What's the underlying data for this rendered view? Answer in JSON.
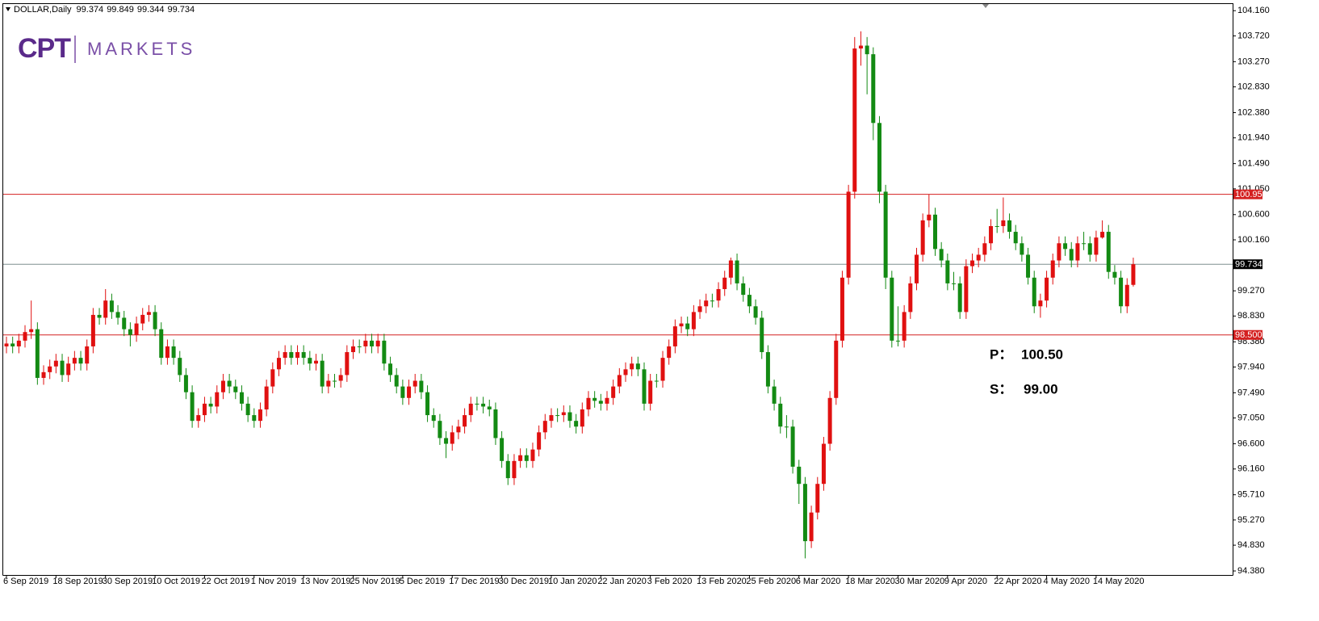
{
  "logo": {
    "mark": "CPT",
    "name": "MARKETS"
  },
  "chart_data": {
    "type": "candlestick",
    "title": "DOLLAR,Daily",
    "up_color": "#e01010",
    "down_color": "#138a13",
    "categories": [
      "6 Sep 2019",
      null,
      null,
      null,
      null,
      null,
      null,
      null,
      "18 Sep 2019",
      null,
      null,
      null,
      null,
      null,
      null,
      null,
      "30 Sep 2019",
      null,
      null,
      null,
      null,
      null,
      null,
      null,
      "10 Oct 2019",
      null,
      null,
      null,
      null,
      null,
      null,
      null,
      "22 Oct 2019",
      null,
      null,
      null,
      null,
      null,
      null,
      null,
      "1 Nov 2019",
      null,
      null,
      null,
      null,
      null,
      null,
      null,
      "13 Nov 2019",
      null,
      null,
      null,
      null,
      null,
      null,
      null,
      "25 Nov 2019",
      null,
      null,
      null,
      null,
      null,
      null,
      null,
      "5 Dec 2019",
      null,
      null,
      null,
      null,
      null,
      null,
      null,
      "17 Dec 2019",
      null,
      null,
      null,
      null,
      null,
      null,
      null,
      "30 Dec 2019",
      null,
      null,
      null,
      null,
      null,
      null,
      null,
      "10 Jan 2020",
      null,
      null,
      null,
      null,
      null,
      null,
      null,
      "22 Jan 2020",
      null,
      null,
      null,
      null,
      null,
      null,
      null,
      "3 Feb 2020",
      null,
      null,
      null,
      null,
      null,
      null,
      null,
      "13 Feb 2020",
      null,
      null,
      null,
      null,
      null,
      null,
      null,
      "25 Feb 2020",
      null,
      null,
      null,
      null,
      null,
      null,
      null,
      "6 Mar 2020",
      null,
      null,
      null,
      null,
      null,
      null,
      null,
      "18 Mar 2020",
      null,
      null,
      null,
      null,
      null,
      null,
      null,
      "30 Mar 2020",
      null,
      null,
      null,
      null,
      null,
      null,
      null,
      "9 Apr 2020",
      null,
      null,
      null,
      null,
      null,
      null,
      null,
      "22 Apr 2020",
      null,
      null,
      null,
      null,
      null,
      null,
      null,
      "4 May 2020",
      null,
      null,
      null,
      null,
      null,
      null,
      null,
      "14 May 2020",
      null,
      null,
      null,
      null,
      null,
      null
    ],
    "open": [
      98.3,
      98.35,
      98.3,
      98.4,
      98.55,
      98.6,
      97.75,
      97.85,
      97.95,
      98.05,
      97.8,
      98.0,
      98.1,
      98.0,
      98.3,
      98.85,
      98.8,
      99.1,
      98.9,
      98.8,
      98.6,
      98.5,
      98.7,
      98.85,
      98.9,
      98.6,
      98.1,
      98.3,
      98.1,
      97.8,
      97.5,
      97.0,
      97.1,
      97.3,
      97.25,
      97.5,
      97.7,
      97.6,
      97.5,
      97.3,
      97.1,
      97.0,
      97.2,
      97.6,
      97.9,
      98.1,
      98.2,
      98.1,
      98.2,
      98.1,
      98.0,
      98.05,
      97.6,
      97.7,
      97.7,
      97.8,
      98.2,
      98.3,
      98.3,
      98.4,
      98.3,
      98.4,
      98.0,
      97.8,
      97.6,
      97.4,
      97.6,
      97.7,
      97.5,
      97.1,
      97.0,
      96.7,
      96.6,
      96.8,
      96.9,
      97.1,
      97.3,
      97.3,
      97.25,
      97.2,
      96.7,
      96.3,
      96.0,
      96.3,
      96.4,
      96.3,
      96.5,
      96.8,
      97.0,
      97.1,
      97.1,
      97.15,
      97.0,
      96.9,
      97.2,
      97.4,
      97.35,
      97.3,
      97.4,
      97.6,
      97.8,
      97.9,
      98.0,
      97.9,
      97.3,
      97.7,
      97.7,
      98.1,
      98.3,
      98.65,
      98.7,
      98.6,
      98.9,
      99.0,
      99.1,
      99.1,
      99.3,
      99.5,
      99.8,
      99.4,
      99.2,
      99.0,
      98.8,
      98.2,
      97.6,
      97.3,
      96.9,
      96.9,
      96.2,
      95.9,
      94.9,
      95.4,
      95.9,
      96.6,
      97.4,
      98.4,
      99.5,
      101.0,
      103.5,
      103.55,
      103.4,
      102.2,
      101.0,
      99.5,
      98.4,
      98.4,
      98.9,
      99.4,
      99.9,
      100.5,
      100.6,
      100.0,
      99.8,
      99.4,
      99.4,
      98.9,
      99.7,
      99.8,
      99.9,
      100.1,
      100.4,
      100.4,
      100.5,
      100.3,
      100.1,
      99.9,
      99.5,
      99.0,
      99.1,
      99.5,
      99.8,
      100.1,
      100.0,
      99.8,
      100.1,
      100.1,
      99.9,
      100.2,
      100.3,
      99.6,
      99.5,
      99.0,
      99.374
    ],
    "high": [
      98.47,
      98.47,
      98.52,
      98.67,
      99.1,
      98.72,
      97.97,
      98.07,
      98.17,
      98.17,
      98.12,
      98.22,
      98.22,
      98.42,
      98.97,
      98.97,
      99.3,
      99.22,
      99.02,
      98.92,
      98.72,
      98.82,
      98.97,
      99.02,
      99.02,
      98.72,
      98.42,
      98.42,
      98.22,
      97.92,
      97.62,
      97.22,
      97.42,
      97.42,
      97.62,
      97.82,
      97.82,
      97.72,
      97.62,
      97.42,
      97.22,
      97.32,
      97.72,
      98.02,
      98.22,
      98.32,
      98.32,
      98.32,
      98.32,
      98.22,
      98.17,
      98.17,
      97.82,
      97.82,
      97.92,
      98.32,
      98.42,
      98.42,
      98.52,
      98.52,
      98.52,
      98.52,
      98.12,
      97.92,
      97.72,
      97.72,
      97.82,
      97.82,
      97.62,
      97.22,
      97.12,
      96.82,
      96.92,
      97.02,
      97.22,
      97.42,
      97.42,
      97.42,
      97.37,
      97.32,
      96.82,
      96.42,
      96.42,
      96.52,
      96.52,
      96.62,
      96.92,
      97.12,
      97.22,
      97.22,
      97.27,
      97.27,
      97.12,
      97.32,
      97.52,
      97.52,
      97.47,
      97.52,
      97.72,
      97.92,
      98.02,
      98.12,
      98.12,
      98.02,
      97.82,
      97.82,
      98.22,
      98.42,
      98.77,
      98.82,
      98.82,
      99.02,
      99.12,
      99.22,
      99.22,
      99.42,
      99.62,
      99.85,
      99.92,
      99.52,
      99.32,
      99.12,
      98.92,
      98.32,
      97.72,
      97.42,
      97.1,
      97.02,
      96.32,
      96.02,
      95.52,
      96.02,
      96.72,
      97.52,
      98.52,
      99.62,
      101.12,
      103.7,
      103.8,
      103.7,
      103.52,
      102.32,
      101.12,
      99.62,
      99.0,
      99.02,
      99.52,
      100.02,
      100.62,
      100.95,
      100.72,
      100.12,
      99.92,
      99.6,
      99.52,
      99.82,
      99.92,
      100.02,
      100.22,
      100.52,
      100.7,
      100.9,
      100.62,
      100.42,
      100.22,
      100.02,
      99.62,
      99.22,
      99.62,
      99.92,
      100.22,
      100.22,
      100.12,
      100.22,
      100.3,
      100.22,
      100.32,
      100.5,
      100.42,
      99.72,
      99.62,
      99.49,
      99.849
    ],
    "low": [
      98.18,
      98.18,
      98.18,
      98.28,
      98.43,
      97.63,
      97.63,
      97.73,
      97.83,
      97.68,
      97.68,
      97.88,
      97.88,
      97.88,
      98.18,
      98.68,
      98.68,
      98.78,
      98.68,
      98.48,
      98.3,
      98.38,
      98.58,
      98.73,
      98.48,
      97.98,
      97.98,
      97.98,
      97.68,
      97.38,
      96.88,
      96.88,
      96.98,
      97.13,
      97.13,
      97.38,
      97.48,
      97.38,
      97.18,
      96.98,
      96.88,
      96.88,
      97.08,
      97.48,
      97.78,
      97.98,
      97.98,
      97.98,
      97.98,
      97.88,
      97.88,
      97.48,
      97.48,
      97.58,
      97.58,
      97.68,
      98.08,
      98.18,
      98.18,
      98.18,
      98.18,
      97.88,
      97.68,
      97.48,
      97.28,
      97.28,
      97.48,
      97.38,
      96.98,
      96.88,
      96.58,
      96.35,
      96.48,
      96.68,
      96.78,
      96.98,
      97.18,
      97.13,
      97.08,
      96.58,
      96.18,
      95.88,
      95.88,
      96.18,
      96.18,
      96.18,
      96.38,
      96.68,
      96.88,
      96.98,
      96.98,
      96.88,
      96.78,
      96.78,
      97.08,
      97.23,
      97.18,
      97.18,
      97.28,
      97.48,
      97.68,
      97.78,
      97.78,
      97.18,
      97.18,
      97.58,
      97.58,
      97.98,
      98.18,
      98.53,
      98.48,
      98.48,
      98.78,
      98.88,
      98.98,
      98.98,
      99.18,
      99.38,
      99.28,
      99.08,
      98.88,
      98.68,
      98.08,
      97.48,
      97.18,
      96.78,
      96.7,
      96.08,
      95.55,
      94.6,
      94.78,
      95.28,
      95.78,
      96.48,
      97.28,
      98.28,
      99.38,
      100.88,
      103.2,
      102.7,
      101.9,
      100.8,
      99.3,
      98.28,
      98.3,
      98.28,
      98.78,
      99.28,
      99.78,
      100.38,
      99.88,
      99.68,
      99.28,
      99.28,
      98.78,
      98.78,
      99.58,
      99.68,
      99.78,
      99.98,
      100.28,
      100.28,
      100.18,
      99.98,
      99.78,
      99.38,
      98.88,
      98.8,
      98.98,
      99.38,
      99.68,
      99.88,
      99.68,
      99.68,
      99.98,
      99.78,
      99.78,
      100.18,
      99.48,
      99.38,
      98.88,
      98.88,
      99.344
    ],
    "close": [
      98.35,
      98.3,
      98.4,
      98.55,
      98.6,
      97.75,
      97.85,
      97.95,
      98.05,
      97.8,
      98.0,
      98.1,
      98.0,
      98.3,
      98.85,
      98.8,
      99.1,
      98.9,
      98.8,
      98.6,
      98.5,
      98.7,
      98.85,
      98.9,
      98.6,
      98.1,
      98.3,
      98.1,
      97.8,
      97.5,
      97.0,
      97.1,
      97.3,
      97.25,
      97.5,
      97.7,
      97.6,
      97.5,
      97.3,
      97.1,
      97.0,
      97.2,
      97.6,
      97.9,
      98.1,
      98.2,
      98.1,
      98.2,
      98.1,
      98.0,
      98.05,
      97.6,
      97.7,
      97.7,
      97.8,
      98.2,
      98.3,
      98.3,
      98.4,
      98.3,
      98.4,
      98.0,
      97.8,
      97.6,
      97.4,
      97.6,
      97.7,
      97.5,
      97.1,
      97.0,
      96.7,
      96.6,
      96.8,
      96.9,
      97.1,
      97.3,
      97.3,
      97.25,
      97.2,
      96.7,
      96.3,
      96.0,
      96.3,
      96.4,
      96.3,
      96.5,
      96.8,
      97.0,
      97.1,
      97.1,
      97.15,
      97.0,
      96.9,
      97.2,
      97.4,
      97.35,
      97.3,
      97.4,
      97.6,
      97.8,
      97.9,
      98.0,
      97.9,
      97.3,
      97.7,
      97.7,
      98.1,
      98.3,
      98.65,
      98.7,
      98.6,
      98.9,
      99.0,
      99.1,
      99.1,
      99.3,
      99.5,
      99.8,
      99.4,
      99.2,
      99.0,
      98.8,
      98.2,
      97.6,
      97.3,
      96.9,
      96.9,
      96.2,
      95.9,
      94.9,
      95.4,
      95.9,
      96.6,
      97.4,
      98.4,
      99.5,
      101.0,
      103.5,
      103.55,
      103.4,
      102.2,
      101.0,
      99.5,
      98.4,
      98.4,
      98.9,
      99.4,
      99.9,
      100.5,
      100.6,
      100.0,
      99.8,
      99.4,
      99.4,
      98.9,
      99.7,
      99.8,
      99.9,
      100.1,
      100.4,
      100.4,
      100.5,
      100.3,
      100.1,
      99.9,
      99.5,
      99.0,
      99.1,
      99.5,
      99.8,
      100.1,
      100.0,
      99.8,
      100.1,
      100.1,
      99.9,
      100.2,
      100.3,
      99.6,
      99.5,
      99.0,
      99.374,
      99.734
    ],
    "ylim": [
      94.31,
      104.29
    ],
    "yticks": [
      {
        "value": 104.16,
        "label": "104.160"
      },
      {
        "value": 103.72,
        "label": "103.720"
      },
      {
        "value": 103.27,
        "label": "103.270"
      },
      {
        "value": 102.83,
        "label": "102.830"
      },
      {
        "value": 102.38,
        "label": "102.380"
      },
      {
        "value": 101.94,
        "label": "101.940"
      },
      {
        "value": 101.49,
        "label": "101.490"
      },
      {
        "value": 101.05,
        "label": "101.050"
      },
      {
        "value": 100.6,
        "label": "100.600"
      },
      {
        "value": 100.16,
        "label": "100.160"
      },
      {
        "value": 99.27,
        "label": "99.270"
      },
      {
        "value": 98.83,
        "label": "98.830"
      },
      {
        "value": 98.38,
        "label": "98.380"
      },
      {
        "value": 97.94,
        "label": "97.940"
      },
      {
        "value": 97.49,
        "label": "97.490"
      },
      {
        "value": 97.05,
        "label": "97.050"
      },
      {
        "value": 96.6,
        "label": "96.600"
      },
      {
        "value": 96.16,
        "label": "96.160"
      },
      {
        "value": 95.71,
        "label": "95.710"
      },
      {
        "value": 95.27,
        "label": "95.270"
      },
      {
        "value": 94.83,
        "label": "94.830"
      },
      {
        "value": 94.38,
        "label": "94.380"
      }
    ],
    "grid": false,
    "hlines": [
      {
        "value": 100.954,
        "color": "#d42020"
      },
      {
        "value": 99.734,
        "color": "#000000"
      },
      {
        "value": 98.5,
        "label": "98.500",
        "color": "#d42020"
      }
    ],
    "annotations": [
      {
        "label": "P：",
        "text": "100.50"
      },
      {
        "label": "S：",
        "text": "99.00"
      }
    ]
  }
}
